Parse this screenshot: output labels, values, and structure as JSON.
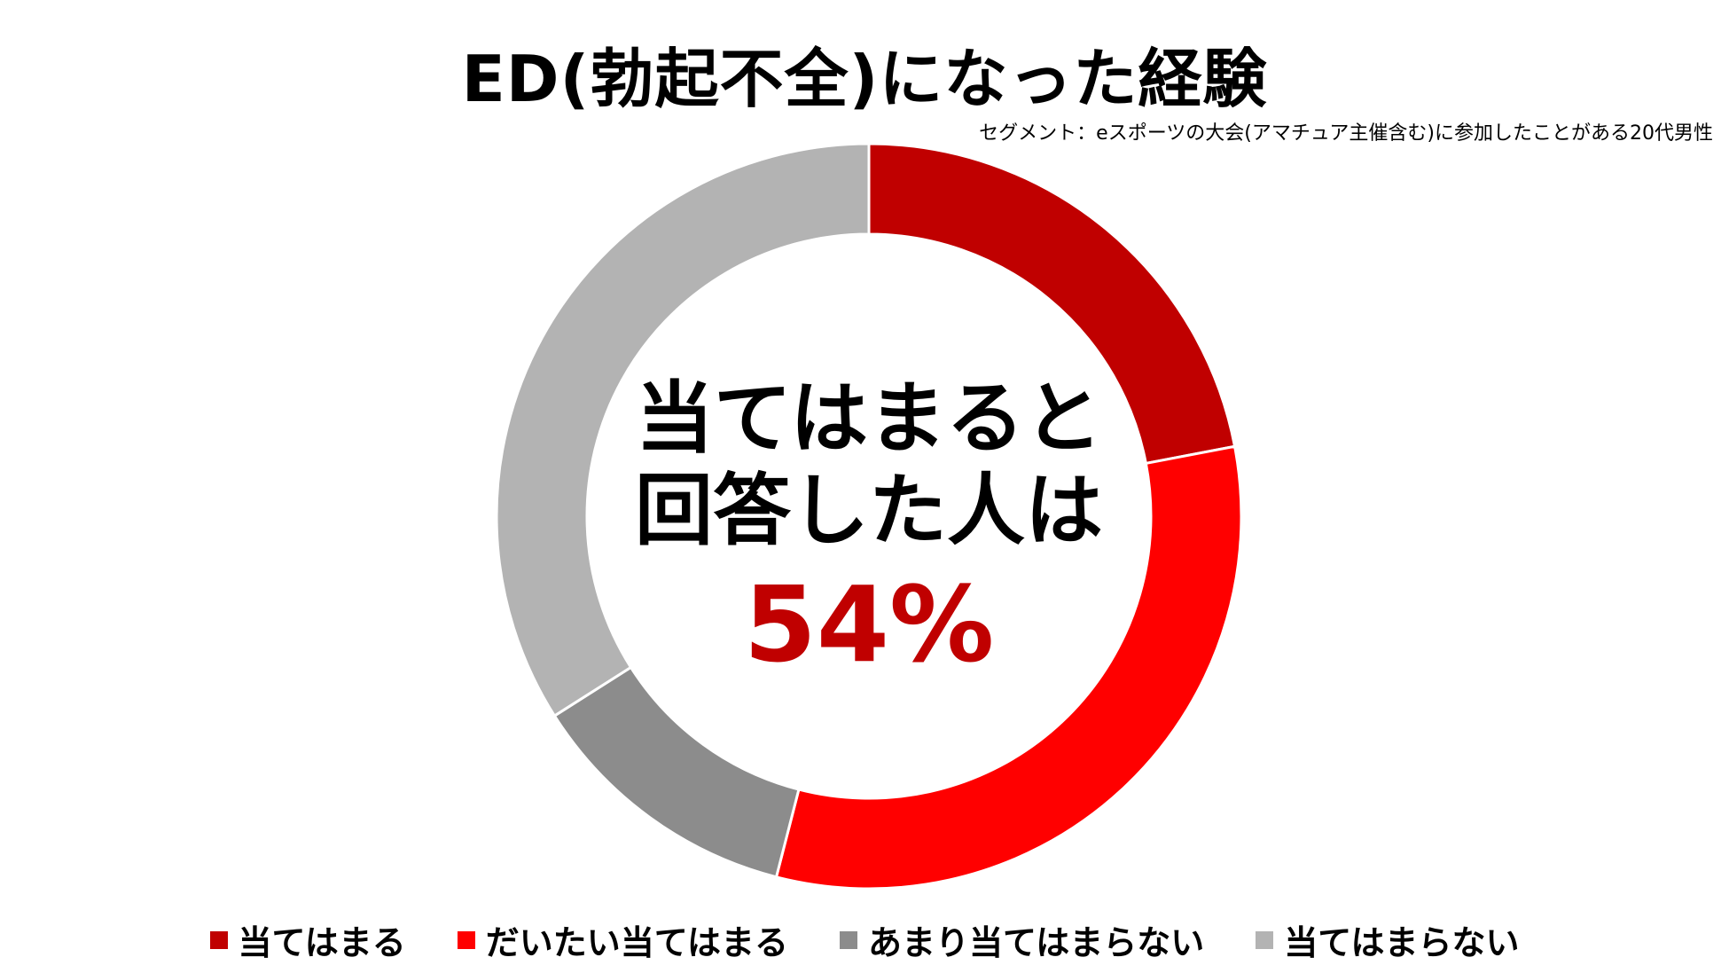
{
  "chart_data": {
    "type": "pie",
    "title": "ED(勃起不全)になった経験",
    "subtitle": "セグメント：eスポーツの大会(アマチュア主催含む)に参加したことがある20代男性",
    "center_text": {
      "line1": "当てはまると",
      "line2": "回答した人は",
      "value": "54%"
    },
    "legend_position": "bottom",
    "series": [
      {
        "name": "当てはまる",
        "value": 22,
        "color": "#c00000"
      },
      {
        "name": "だいたい当てはまる",
        "value": 32,
        "color": "#ff0000"
      },
      {
        "name": "あまり当てはまらない",
        "value": 12,
        "color": "#8c8c8c"
      },
      {
        "name": "当てはまらない",
        "value": 34,
        "color": "#b3b3b3"
      }
    ]
  }
}
